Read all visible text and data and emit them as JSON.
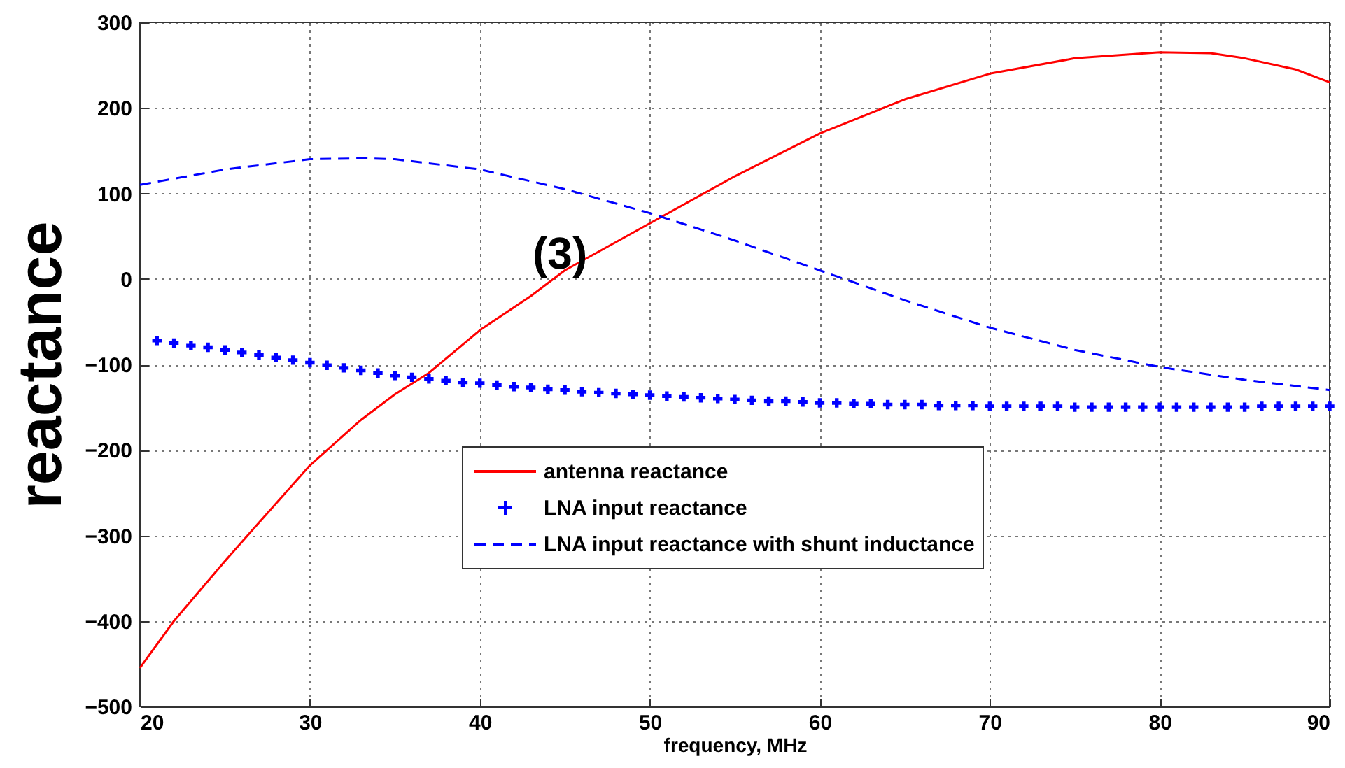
{
  "chart_data": {
    "type": "line",
    "xlabel": "frequency, MHz",
    "ylabel": "reactance",
    "annotations": [
      "(3)"
    ],
    "xlim": [
      20,
      90
    ],
    "xticks": [
      20,
      30,
      40,
      50,
      60,
      70,
      80,
      90
    ],
    "ylim": [
      -500,
      300
    ],
    "yticks": [
      -500,
      -400,
      -300,
      -200,
      -100,
      0,
      100,
      200,
      300
    ],
    "grid": true,
    "legend": "bottom",
    "series": [
      {
        "name": "antenna reactance",
        "color": "#ff0000",
        "line_style": "solid",
        "marker": "none",
        "x": [
          20,
          22,
          25,
          27,
          30,
          33,
          35,
          37,
          40,
          43,
          45,
          50,
          55,
          60,
          65,
          70,
          75,
          80,
          83,
          85,
          88,
          90
        ],
        "values": [
          -455,
          -400,
          -330,
          -285,
          -218,
          -165,
          -135,
          -110,
          -60,
          -20,
          10,
          65,
          120,
          170,
          210,
          240,
          258,
          265,
          264,
          258,
          245,
          230
        ]
      },
      {
        "name": "LNA input reactance",
        "type": "scatter",
        "color": "#0000ff",
        "marker": "cross",
        "x": [
          21,
          22,
          23,
          24,
          25,
          26,
          27,
          28,
          29,
          30,
          31,
          32,
          33,
          34,
          35,
          36,
          37,
          38,
          39,
          40,
          41,
          42,
          43,
          44,
          45,
          46,
          47,
          48,
          49,
          50,
          51,
          52,
          53,
          54,
          55,
          56,
          57,
          58,
          59,
          60,
          61,
          62,
          63,
          64,
          65,
          66,
          67,
          68,
          69,
          70,
          71,
          72,
          73,
          74,
          75,
          76,
          77,
          78,
          79,
          80,
          81,
          82,
          83,
          84,
          85,
          86,
          87,
          88,
          89,
          90
        ],
        "values": [
          -72,
          -75,
          -78,
          -80,
          -83,
          -86,
          -89,
          -92,
          -95,
          -98,
          -101,
          -104,
          -107,
          -110,
          -113,
          -115,
          -117,
          -119,
          -121,
          -122,
          -124,
          -126,
          -127,
          -129,
          -130,
          -132,
          -133,
          -134,
          -135,
          -136,
          -137,
          -138,
          -139,
          -140,
          -141,
          -142,
          -143,
          -143,
          -144,
          -145,
          -145,
          -146,
          -146,
          -147,
          -147,
          -147,
          -148,
          -148,
          -148,
          -149,
          -149,
          -149,
          -149,
          -149,
          -150,
          -150,
          -150,
          -150,
          -150,
          -150,
          -150,
          -150,
          -150,
          -150,
          -150,
          -149,
          -149,
          -149,
          -149,
          -149
        ]
      },
      {
        "name": "LNA input reactance with shunt inductance",
        "color": "#0000ff",
        "line_style": "dashed",
        "marker": "none",
        "x": [
          20,
          25,
          30,
          33,
          35,
          40,
          45,
          50,
          55,
          60,
          65,
          70,
          75,
          80,
          85,
          90
        ],
        "values": [
          110,
          128,
          140,
          141,
          140,
          128,
          105,
          77,
          45,
          10,
          -25,
          -57,
          -83,
          -103,
          -118,
          -130
        ]
      }
    ]
  }
}
